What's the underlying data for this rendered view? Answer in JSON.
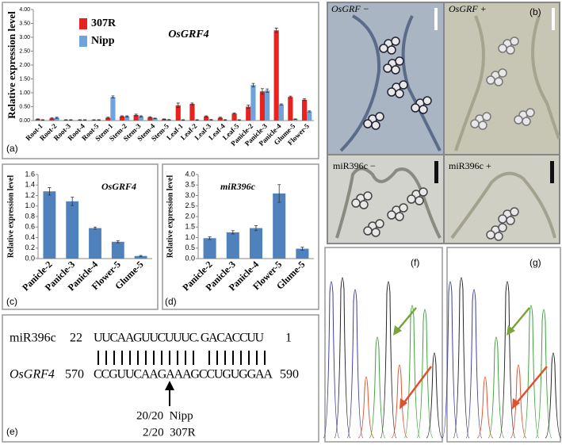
{
  "chart_data": [
    {
      "type": "bar",
      "panel_label": "(a)",
      "title": "OsGRF4",
      "ylabel": "Relative expression level",
      "categories": [
        "Root-1",
        "Root-2",
        "Root-3",
        "Root-4",
        "Root-5",
        "Stem-1",
        "Stem-2",
        "Stem-3",
        "Stem-4",
        "Stem-5",
        "Leaf-1",
        "Leaf-2",
        "Leaf-3",
        "Leaf-4",
        "Leaf-5",
        "Panicle-2",
        "Panicle-3",
        "Panicle-4",
        "Glume-5",
        "Flower-5"
      ],
      "series": [
        {
          "name": "307R",
          "color": "#e8231f",
          "values": [
            0.05,
            0.08,
            0.02,
            0.02,
            0.02,
            0.1,
            0.15,
            0.2,
            0.12,
            0.05,
            0.55,
            0.6,
            0.15,
            0.1,
            0.25,
            0.5,
            1.05,
            3.25,
            0.85,
            0.75
          ],
          "errors": [
            0.01,
            0.02,
            0.01,
            0.01,
            0.01,
            0.02,
            0.02,
            0.03,
            0.02,
            0.01,
            0.08,
            0.03,
            0.02,
            0.02,
            0.02,
            0.06,
            0.1,
            0.08,
            0.03,
            0.03
          ]
        },
        {
          "name": "Nipp",
          "color": "#6fa3dc",
          "values": [
            0.02,
            0.1,
            0.02,
            0.02,
            0.02,
            0.85,
            0.15,
            0.15,
            0.08,
            0.03,
            0.02,
            0.02,
            0.03,
            0.02,
            0.02,
            1.28,
            1.08,
            0.58,
            0.05,
            0.33
          ],
          "errors": [
            0.01,
            0.02,
            0.01,
            0.01,
            0.01,
            0.04,
            0.02,
            0.02,
            0.01,
            0.01,
            0.01,
            0.01,
            0.01,
            0.01,
            0.01,
            0.06,
            0.06,
            0.02,
            0.01,
            0.02
          ]
        }
      ],
      "ylim": [
        0,
        4
      ],
      "yticks": [
        {
          "value": 0,
          "label": "0.00"
        },
        {
          "value": 0.5,
          "label": "0.50"
        },
        {
          "value": 1,
          "label": "1.00"
        },
        {
          "value": 1.5,
          "label": "1.50"
        },
        {
          "value": 2,
          "label": "2.00"
        },
        {
          "value": 2.5,
          "label": "2.50"
        },
        {
          "value": 3,
          "label": "3.00"
        },
        {
          "value": 3.5,
          "label": "3.50"
        },
        {
          "value": 4,
          "label": "4.00"
        }
      ]
    },
    {
      "type": "bar",
      "panel_label": "(c)",
      "title": "OsGRF4",
      "ylabel": "Relative expression level",
      "color": "#4f81bd",
      "categories": [
        "Panicle-2",
        "Panicle-3",
        "Panicle-4",
        "Flower-5",
        "Glume-5"
      ],
      "values": [
        1.28,
        1.09,
        0.58,
        0.32,
        0.05
      ],
      "errors": [
        0.07,
        0.08,
        0.02,
        0.02,
        0.01
      ],
      "ylim": [
        0,
        1.6
      ],
      "yticks": [
        {
          "value": 0,
          "label": "0.0"
        },
        {
          "value": 0.2,
          "label": "0.2"
        },
        {
          "value": 0.4,
          "label": "0.4"
        },
        {
          "value": 0.6,
          "label": "0.6"
        },
        {
          "value": 0.8,
          "label": "0.8"
        },
        {
          "value": 1,
          "label": "1.0"
        },
        {
          "value": 1.2,
          "label": "1.2"
        },
        {
          "value": 1.4,
          "label": "1.4"
        },
        {
          "value": 1.6,
          "label": "1.6"
        }
      ]
    },
    {
      "type": "bar",
      "panel_label": "(d)",
      "title": "miR396c",
      "ylabel": "Relative expression level",
      "color": "#4f81bd",
      "categories": [
        "Panicle-2",
        "Panicle-3",
        "Panicle-4",
        "Flower-5",
        "Glume-5"
      ],
      "values": [
        0.97,
        1.25,
        1.45,
        3.1,
        0.47
      ],
      "errors": [
        0.06,
        0.08,
        0.12,
        0.42,
        0.07
      ],
      "ylim": [
        0,
        4
      ],
      "yticks": [
        {
          "value": 0,
          "label": "0.0"
        },
        {
          "value": 0.5,
          "label": "0.5"
        },
        {
          "value": 1,
          "label": "1.0"
        },
        {
          "value": 1.5,
          "label": "1.5"
        },
        {
          "value": 2,
          "label": "2.0"
        },
        {
          "value": 2.5,
          "label": "2.5"
        },
        {
          "value": 3,
          "label": "3.0"
        },
        {
          "value": 3.5,
          "label": "3.5"
        },
        {
          "value": 4,
          "label": "4.0"
        }
      ]
    }
  ],
  "micrographs": {
    "panel_label": "(b)",
    "labels": [
      "OsGRF −",
      "OsGRF +",
      "miR396c −",
      "miR396c +"
    ]
  },
  "alignment": {
    "panel_label": "(e)",
    "mirna": {
      "name": "miR396c",
      "start": 22,
      "sequence": "UUCAAGUUCUUUC. GACACCUU",
      "end": 1
    },
    "target": {
      "name": "OsGRF4",
      "start": 570,
      "sequence": "CCGUUCAAGAAAGCCUGUGGAA",
      "end": 590
    },
    "results": [
      "20/20  Nipp",
      "2/20  307R"
    ]
  },
  "chromatograms": {
    "labels": [
      "(f)",
      "(g)"
    ]
  }
}
